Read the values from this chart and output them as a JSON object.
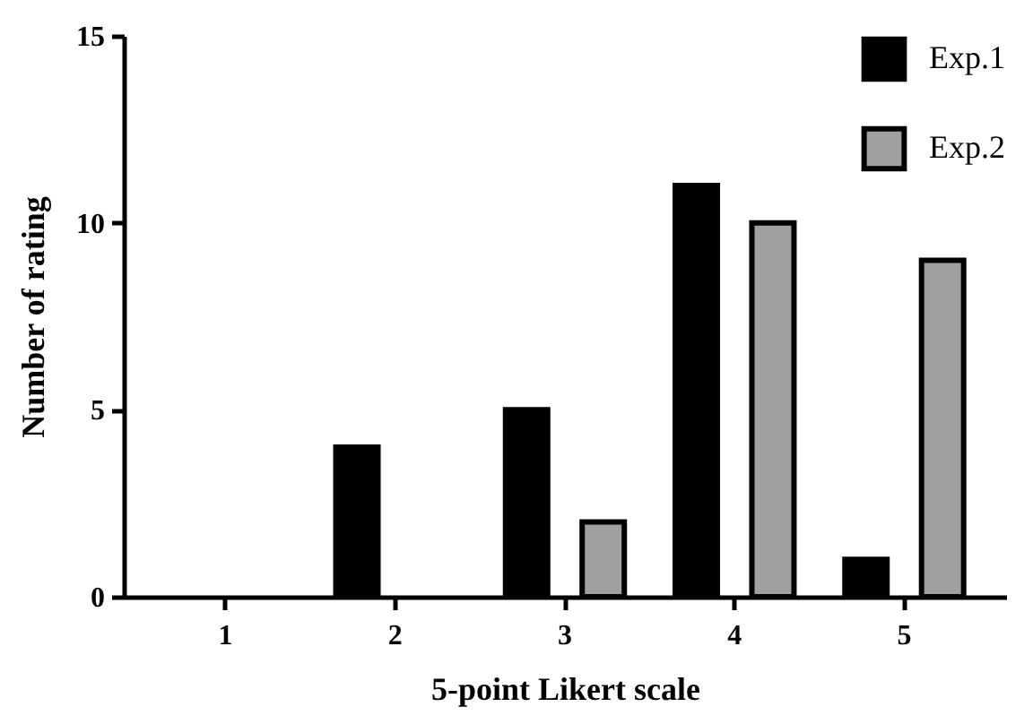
{
  "chart_data": {
    "type": "bar",
    "xlabel": "5-point Likert scale",
    "ylabel": "Number of rating",
    "categories": [
      "1",
      "2",
      "3",
      "4",
      "5"
    ],
    "series": [
      {
        "name": "Exp.1",
        "color": "#000000",
        "values": [
          0,
          4,
          5,
          11,
          1
        ]
      },
      {
        "name": "Exp.2",
        "color": "#a0a0a0",
        "values": [
          0,
          0,
          2,
          10,
          9
        ]
      }
    ],
    "ylim": [
      0,
      15
    ],
    "yticks": [
      0,
      5,
      10,
      15
    ],
    "grid": false,
    "legend": "top right"
  }
}
